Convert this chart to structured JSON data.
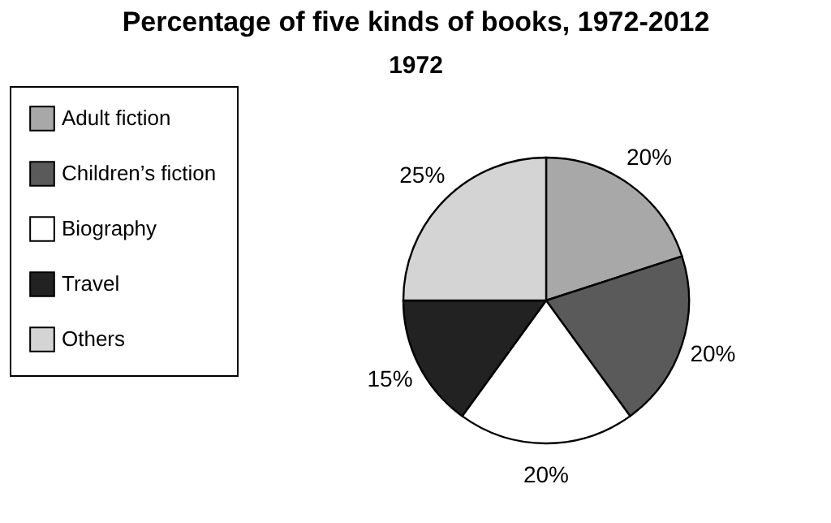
{
  "chart_data": {
    "type": "pie",
    "title": "Percentage of five kinds of books, 1972-2012",
    "subtitle": "1972",
    "categories": [
      "Adult fiction",
      "Children’s fiction",
      "Biography",
      "Travel",
      "Others"
    ],
    "values": [
      20,
      20,
      20,
      15,
      25
    ],
    "colors": [
      "#a8a8a8",
      "#5a5a5a",
      "#ffffff",
      "#222222",
      "#d4d4d4"
    ],
    "value_labels": [
      "20%",
      "20%",
      "20%",
      "15%",
      "25%"
    ],
    "legend": "left"
  }
}
